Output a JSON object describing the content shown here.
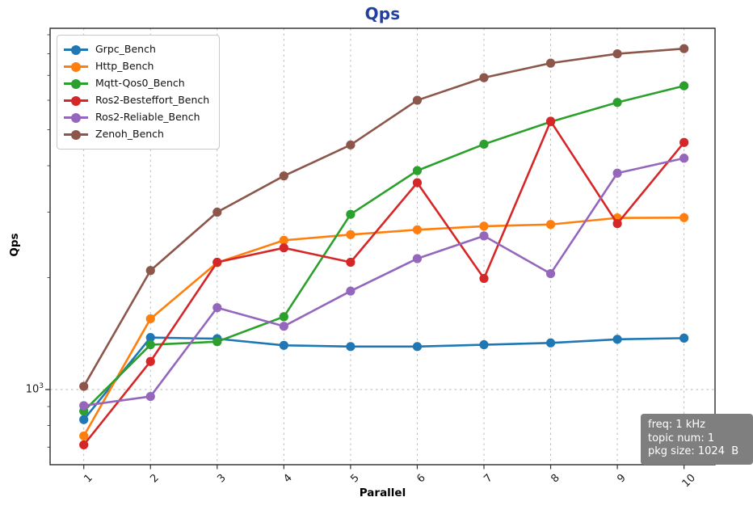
{
  "title": {
    "text": "Qps",
    "color": "#2140a3"
  },
  "chart_data": {
    "type": "line",
    "title": "Qps",
    "xlabel": "Parallel",
    "ylabel": "Qps",
    "x": [
      1,
      2,
      3,
      4,
      5,
      6,
      7,
      8,
      9,
      10
    ],
    "yscale": "log",
    "ylim": [
      628,
      9370
    ],
    "y_major_ticks": [
      1000
    ],
    "ytick": {
      "base": "10",
      "exp": "3"
    },
    "grid": {
      "style": "dashed",
      "color": "#b5b5b5"
    },
    "legend_position": "upper-left",
    "series": [
      {
        "name": "Grpc_Bench",
        "color": "#1f77b4",
        "values": [
          830,
          1380,
          1370,
          1315,
          1305,
          1305,
          1320,
          1335,
          1365,
          1375
        ]
      },
      {
        "name": "Http_Bench",
        "color": "#ff7f0e",
        "values": [
          750,
          1550,
          2195,
          2520,
          2610,
          2690,
          2750,
          2780,
          2895,
          2900
        ]
      },
      {
        "name": "Mqtt-Qos0_Bench",
        "color": "#2ca02c",
        "values": [
          875,
          1320,
          1345,
          1570,
          2960,
          3880,
          4570,
          5250,
          5920,
          6560
        ]
      },
      {
        "name": "Ros2-Besteffort_Bench",
        "color": "#d62728",
        "values": [
          710,
          1190,
          2200,
          2405,
          2200,
          3600,
          1990,
          5270,
          2795,
          4620
        ]
      },
      {
        "name": "Ros2-Reliable_Bench",
        "color": "#9467bd",
        "values": [
          905,
          958,
          1660,
          1480,
          1840,
          2250,
          2590,
          2050,
          3820,
          4190
        ]
      },
      {
        "name": "Zenoh_Bench",
        "color": "#8c564b",
        "values": [
          1020,
          2090,
          3000,
          3755,
          4550,
          6000,
          6900,
          7550,
          8000,
          8260
        ]
      }
    ],
    "annotation": {
      "bg": "#7f7f7f",
      "text_color": "#ffffff",
      "lines": [
        "freq: 1 kHz",
        "topic num: 1",
        "pkg size: 1024  B"
      ]
    }
  }
}
